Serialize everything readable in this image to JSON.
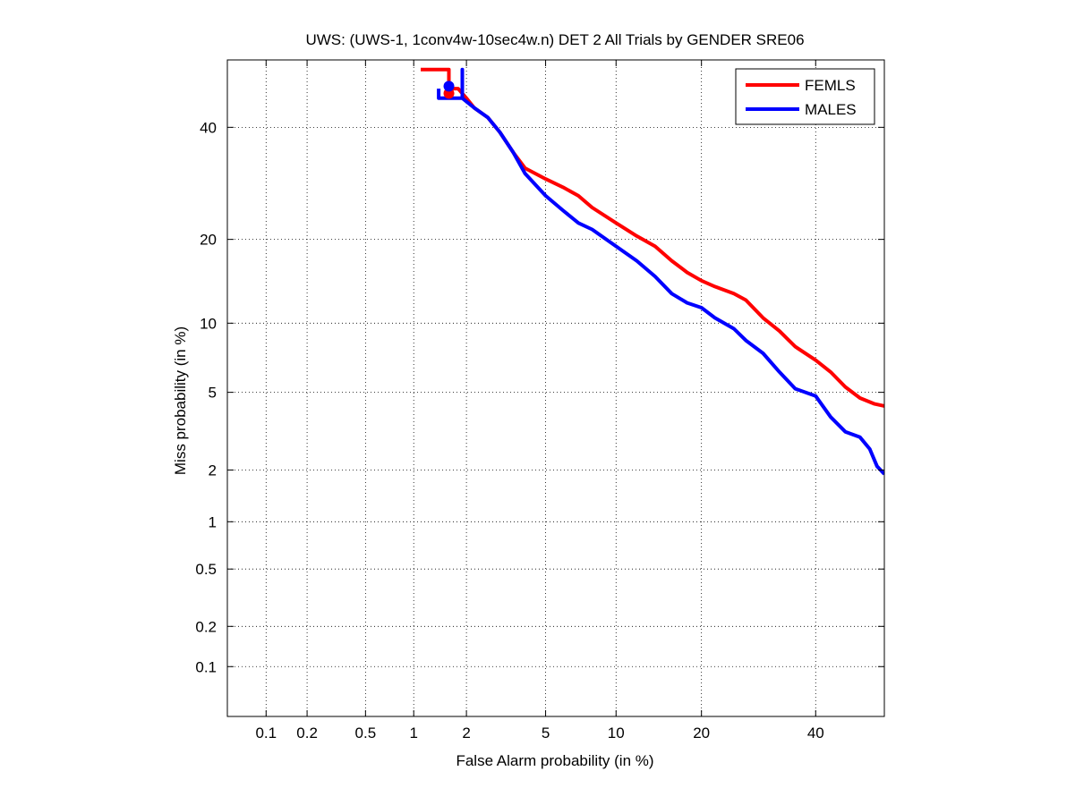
{
  "chart_data": {
    "type": "line",
    "title": "UWS: (UWS-1, 1conv4w-10sec4w.n) DET 2 All Trials by GENDER SRE06",
    "xlabel": "False Alarm probability (in %)",
    "ylabel": "Miss probability (in %)",
    "x_scale": "normal-deviate (probit)",
    "y_scale": "normal-deviate (probit)",
    "xlim": [
      0.05,
      54
    ],
    "ylim": [
      0.04,
      54
    ],
    "x_ticks": [
      {
        "value": 0.1,
        "label": "0.1"
      },
      {
        "value": 0.2,
        "label": "0.2"
      },
      {
        "value": 0.5,
        "label": "0.5"
      },
      {
        "value": 1,
        "label": "1"
      },
      {
        "value": 2,
        "label": "2"
      },
      {
        "value": 5,
        "label": "5"
      },
      {
        "value": 10,
        "label": "10"
      },
      {
        "value": 20,
        "label": "20"
      },
      {
        "value": 40,
        "label": "40"
      }
    ],
    "y_ticks": [
      {
        "value": 0.1,
        "label": "0.1"
      },
      {
        "value": 0.2,
        "label": "0.2"
      },
      {
        "value": 0.5,
        "label": "0.5"
      },
      {
        "value": 1,
        "label": "1"
      },
      {
        "value": 2,
        "label": "2"
      },
      {
        "value": 5,
        "label": "5"
      },
      {
        "value": 10,
        "label": "10"
      },
      {
        "value": 20,
        "label": "20"
      },
      {
        "value": 40,
        "label": "40"
      }
    ],
    "grid": true,
    "legend_position": "top-right",
    "series": [
      {
        "name": "FEMLS",
        "color": "#ff0000",
        "points": [
          [
            1.1,
            52
          ],
          [
            1.6,
            52
          ],
          [
            1.6,
            48
          ],
          [
            1.8,
            48
          ],
          [
            2.0,
            46
          ],
          [
            2.2,
            44
          ],
          [
            2.6,
            42
          ],
          [
            3.0,
            39
          ],
          [
            3.5,
            35
          ],
          [
            4.0,
            32
          ],
          [
            5.0,
            30
          ],
          [
            6.0,
            28.5
          ],
          [
            7.0,
            27
          ],
          [
            8.0,
            25
          ],
          [
            10.0,
            22.5
          ],
          [
            12.0,
            20.5
          ],
          [
            14.0,
            19
          ],
          [
            16.0,
            17
          ],
          [
            18.0,
            15.5
          ],
          [
            20.0,
            14.5
          ],
          [
            22.0,
            13.8
          ],
          [
            25.0,
            13
          ],
          [
            27.0,
            12.3
          ],
          [
            30.0,
            10.5
          ],
          [
            33.0,
            9.3
          ],
          [
            36.0,
            8
          ],
          [
            40.0,
            7
          ],
          [
            43.0,
            6.2
          ],
          [
            46.0,
            5.3
          ],
          [
            49.0,
            4.7
          ],
          [
            52.0,
            4.4
          ],
          [
            54.0,
            4.3
          ]
        ]
      },
      {
        "name": "MALES",
        "color": "#0000ff",
        "points": [
          [
            1.4,
            48
          ],
          [
            1.4,
            46
          ],
          [
            1.9,
            46
          ],
          [
            1.9,
            52
          ],
          [
            1.9,
            46
          ],
          [
            2.2,
            44
          ],
          [
            2.6,
            42
          ],
          [
            3.0,
            39
          ],
          [
            3.5,
            35
          ],
          [
            4.0,
            31
          ],
          [
            5.0,
            27
          ],
          [
            6.0,
            24.5
          ],
          [
            7.0,
            22.5
          ],
          [
            8.0,
            21.5
          ],
          [
            10.0,
            19
          ],
          [
            12.0,
            17
          ],
          [
            14.0,
            15
          ],
          [
            16.0,
            13
          ],
          [
            18.0,
            12
          ],
          [
            20.0,
            11.5
          ],
          [
            22.0,
            10.5
          ],
          [
            25.0,
            9.5
          ],
          [
            27.0,
            8.5
          ],
          [
            30.0,
            7.5
          ],
          [
            33.0,
            6.2
          ],
          [
            36.0,
            5.2
          ],
          [
            40.0,
            4.8
          ],
          [
            43.0,
            3.8
          ],
          [
            46.0,
            3.2
          ],
          [
            49.0,
            3.0
          ],
          [
            51.0,
            2.6
          ],
          [
            52.5,
            2.1
          ],
          [
            54.0,
            1.9
          ]
        ]
      }
    ],
    "markers": [
      {
        "series": "FEMLS",
        "x": 1.6,
        "y": 47
      },
      {
        "series": "MALES",
        "x": 1.6,
        "y": 48.5
      }
    ]
  }
}
